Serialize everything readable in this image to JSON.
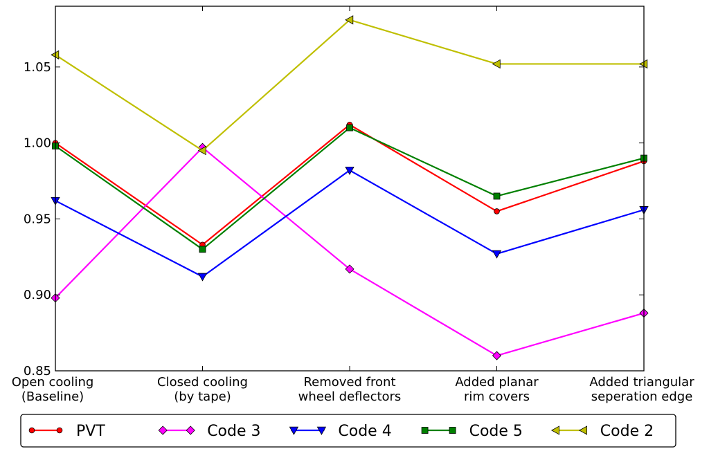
{
  "chart_data": {
    "type": "line",
    "categories": [
      [
        "Open cooling",
        "(Baseline)"
      ],
      [
        "Closed cooling",
        "(by tape)"
      ],
      [
        "Removed front",
        "wheel deflectors"
      ],
      [
        "Added planar",
        "rim covers"
      ],
      [
        "Added triangular",
        "seperation edge"
      ]
    ],
    "ylim": [
      0.85,
      1.09
    ],
    "yticks": [
      "0.85",
      "0.90",
      "0.95",
      "1.00",
      "1.05"
    ],
    "grid": false,
    "legend_position": "bottom",
    "series": [
      {
        "name": "PVT",
        "color": "#ff0000",
        "marker": "circle",
        "values": [
          1.0,
          0.933,
          1.012,
          0.955,
          0.988
        ]
      },
      {
        "name": "Code 3",
        "color": "#ff00ff",
        "marker": "diamond",
        "values": [
          0.898,
          0.997,
          0.917,
          0.86,
          0.888
        ]
      },
      {
        "name": "Code 4",
        "color": "#0000ff",
        "marker": "triangle-down",
        "values": [
          0.962,
          0.912,
          0.982,
          0.927,
          0.956
        ]
      },
      {
        "name": "Code 5",
        "color": "#008000",
        "marker": "square",
        "values": [
          0.998,
          0.93,
          1.01,
          0.965,
          0.99
        ]
      },
      {
        "name": "Code 2",
        "color": "#bfbf00",
        "marker": "triangle-left",
        "values": [
          1.058,
          0.995,
          1.081,
          1.052,
          1.052
        ]
      }
    ]
  }
}
